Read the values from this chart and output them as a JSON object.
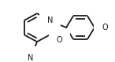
{
  "bg_color": "#ffffff",
  "line_color": "#1a1a1a",
  "line_width": 1.3,
  "font_size": 7.0,
  "figsize": [
    1.46,
    0.79
  ],
  "dpi": 100,
  "xlim": [
    0,
    146
  ],
  "ylim": [
    0,
    79
  ]
}
